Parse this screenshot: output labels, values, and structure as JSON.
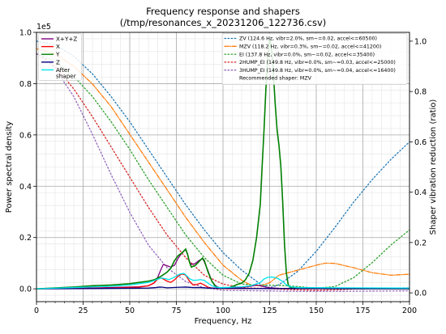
{
  "chart_data": {
    "type": "line",
    "title": "Frequency response and shapers",
    "subtitle": "(/tmp/resonances_x_20231206_122736.csv)",
    "xlabel": "Frequency, Hz",
    "ylabel": "Power spectral density",
    "y2label": "Shaper vibration reduction (ratio)",
    "xlim": [
      0,
      200
    ],
    "ylim": [
      -5000,
      100000
    ],
    "y2lim": [
      -0.035,
      1.035
    ],
    "y_offset_label": "1e5",
    "xticks": [
      0,
      25,
      50,
      75,
      100,
      125,
      150,
      175,
      200
    ],
    "yticks": [
      0.0,
      0.2,
      0.4,
      0.6,
      0.8,
      1.0
    ],
    "y2ticks": [
      0.0,
      0.2,
      0.4,
      0.6,
      0.8,
      1.0
    ],
    "grid": true,
    "legend_left_placement": "top-left",
    "legend_right_placement": "top-right",
    "psd_series": [
      {
        "name": "X+Y+Z",
        "color": "#800080",
        "points": [
          [
            0,
            0
          ],
          [
            20,
            200
          ],
          [
            40,
            500
          ],
          [
            55,
            800
          ],
          [
            60,
            1200
          ],
          [
            63,
            2200
          ],
          [
            65,
            4500
          ],
          [
            67,
            8000
          ],
          [
            68,
            9500
          ],
          [
            70,
            9000
          ],
          [
            72,
            8500
          ],
          [
            74,
            9200
          ],
          [
            76,
            12000
          ],
          [
            78,
            14000
          ],
          [
            80,
            15300
          ],
          [
            81,
            13500
          ],
          [
            82,
            10500
          ],
          [
            83,
            9500
          ],
          [
            85,
            9800
          ],
          [
            87,
            11000
          ],
          [
            89,
            11800
          ],
          [
            90,
            10500
          ],
          [
            92,
            7000
          ],
          [
            94,
            3000
          ],
          [
            96,
            1200
          ],
          [
            98,
            400
          ],
          [
            100,
            200
          ],
          [
            105,
            300
          ],
          [
            110,
            600
          ],
          [
            115,
            1000
          ],
          [
            118,
            1500
          ],
          [
            120,
            1200
          ],
          [
            122,
            800
          ],
          [
            125,
            400
          ],
          [
            130,
            200
          ],
          [
            140,
            100
          ],
          [
            160,
            80
          ],
          [
            200,
            50
          ]
        ]
      },
      {
        "name": "X",
        "color": "#ff0000",
        "points": [
          [
            0,
            0
          ],
          [
            20,
            100
          ],
          [
            40,
            300
          ],
          [
            55,
            700
          ],
          [
            60,
            1200
          ],
          [
            63,
            2300
          ],
          [
            65,
            3800
          ],
          [
            67,
            4200
          ],
          [
            68,
            3800
          ],
          [
            70,
            3000
          ],
          [
            72,
            2500
          ],
          [
            74,
            3500
          ],
          [
            76,
            5000
          ],
          [
            78,
            5800
          ],
          [
            80,
            5400
          ],
          [
            82,
            3000
          ],
          [
            84,
            1500
          ],
          [
            86,
            1700
          ],
          [
            88,
            2200
          ],
          [
            90,
            1500
          ],
          [
            92,
            600
          ],
          [
            95,
            200
          ],
          [
            100,
            100
          ],
          [
            120,
            80
          ],
          [
            200,
            50
          ]
        ]
      },
      {
        "name": "Y",
        "color": "#008000",
        "points": [
          [
            0,
            0
          ],
          [
            20,
            700
          ],
          [
            30,
            1200
          ],
          [
            40,
            1500
          ],
          [
            50,
            2000
          ],
          [
            55,
            2500
          ],
          [
            60,
            3000
          ],
          [
            63,
            3500
          ],
          [
            65,
            4200
          ],
          [
            67,
            5000
          ],
          [
            70,
            6500
          ],
          [
            72,
            8000
          ],
          [
            74,
            11000
          ],
          [
            76,
            13000
          ],
          [
            78,
            14000
          ],
          [
            80,
            15500
          ],
          [
            81,
            13500
          ],
          [
            82,
            10500
          ],
          [
            83,
            8500
          ],
          [
            85,
            9000
          ],
          [
            87,
            10500
          ],
          [
            89,
            12000
          ],
          [
            90,
            11000
          ],
          [
            92,
            6500
          ],
          [
            94,
            3000
          ],
          [
            96,
            900
          ],
          [
            98,
            300
          ],
          [
            100,
            200
          ],
          [
            103,
            400
          ],
          [
            106,
            1200
          ],
          [
            108,
            1800
          ],
          [
            110,
            2200
          ],
          [
            112,
            3500
          ],
          [
            114,
            6000
          ],
          [
            116,
            11000
          ],
          [
            118,
            20000
          ],
          [
            120,
            33000
          ],
          [
            121,
            48000
          ],
          [
            122,
            62000
          ],
          [
            123,
            78000
          ],
          [
            124,
            90000
          ],
          [
            125,
            98000
          ],
          [
            126,
            94000
          ],
          [
            127,
            84000
          ],
          [
            128,
            72000
          ],
          [
            129,
            62000
          ],
          [
            130,
            56000
          ],
          [
            131,
            48000
          ],
          [
            132,
            34000
          ],
          [
            133,
            17000
          ],
          [
            134,
            6000
          ],
          [
            135,
            1500
          ],
          [
            136,
            500
          ],
          [
            140,
            200
          ],
          [
            160,
            100
          ],
          [
            200,
            60
          ]
        ]
      },
      {
        "name": "Z",
        "color": "#000080",
        "points": [
          [
            0,
            0
          ],
          [
            30,
            100
          ],
          [
            60,
            300
          ],
          [
            64,
            500
          ],
          [
            66,
            700
          ],
          [
            68,
            600
          ],
          [
            70,
            400
          ],
          [
            76,
            600
          ],
          [
            80,
            700
          ],
          [
            84,
            500
          ],
          [
            88,
            500
          ],
          [
            92,
            300
          ],
          [
            100,
            200
          ],
          [
            120,
            100
          ],
          [
            200,
            50
          ]
        ]
      },
      {
        "name": "After\nshaper",
        "color": "#00e5ee",
        "points": [
          [
            0,
            0
          ],
          [
            20,
            500
          ],
          [
            40,
            1000
          ],
          [
            50,
            1500
          ],
          [
            55,
            2000
          ],
          [
            60,
            2500
          ],
          [
            63,
            3200
          ],
          [
            65,
            3800
          ],
          [
            67,
            4200
          ],
          [
            69,
            4000
          ],
          [
            71,
            3600
          ],
          [
            73,
            4200
          ],
          [
            75,
            5000
          ],
          [
            77,
            5800
          ],
          [
            79,
            6000
          ],
          [
            80,
            5500
          ],
          [
            82,
            4000
          ],
          [
            84,
            3300
          ],
          [
            86,
            3400
          ],
          [
            88,
            3600
          ],
          [
            90,
            3300
          ],
          [
            92,
            2200
          ],
          [
            94,
            1200
          ],
          [
            96,
            700
          ],
          [
            98,
            500
          ],
          [
            100,
            500
          ],
          [
            110,
            800
          ],
          [
            115,
            1200
          ],
          [
            120,
            2500
          ],
          [
            122,
            3800
          ],
          [
            124,
            4500
          ],
          [
            126,
            4600
          ],
          [
            128,
            4400
          ],
          [
            130,
            3800
          ],
          [
            132,
            2800
          ],
          [
            134,
            1500
          ],
          [
            136,
            800
          ],
          [
            140,
            500
          ],
          [
            160,
            400
          ],
          [
            200,
            300
          ]
        ]
      }
    ],
    "shaper_series": [
      {
        "name": "ZV (124.6 Hz, vibr=2.0%, sm~=0.02, accel<=60500)",
        "color": "#1f77b4",
        "dash": "1.5,2.6",
        "points": [
          [
            0,
            1.0
          ],
          [
            10,
            0.986
          ],
          [
            20,
            0.94
          ],
          [
            30,
            0.87
          ],
          [
            40,
            0.78
          ],
          [
            50,
            0.68
          ],
          [
            60,
            0.57
          ],
          [
            70,
            0.46
          ],
          [
            80,
            0.35
          ],
          [
            90,
            0.25
          ],
          [
            100,
            0.16
          ],
          [
            110,
            0.09
          ],
          [
            120,
            0.035
          ],
          [
            125,
            0.02
          ],
          [
            130,
            0.032
          ],
          [
            140,
            0.085
          ],
          [
            150,
            0.165
          ],
          [
            160,
            0.26
          ],
          [
            170,
            0.36
          ],
          [
            180,
            0.45
          ],
          [
            190,
            0.53
          ],
          [
            200,
            0.6
          ]
        ]
      },
      {
        "name": "MZV (118.2 Hz, vibr=0.3%, sm~=0.02, accel<=41200)",
        "color": "#ff7f0e",
        "dash": "5,1.6,1,1.6",
        "points": [
          [
            0,
            0.97
          ],
          [
            10,
            0.95
          ],
          [
            20,
            0.9
          ],
          [
            30,
            0.83
          ],
          [
            40,
            0.74
          ],
          [
            50,
            0.63
          ],
          [
            60,
            0.52
          ],
          [
            70,
            0.41
          ],
          [
            80,
            0.3
          ],
          [
            90,
            0.2
          ],
          [
            100,
            0.11
          ],
          [
            110,
            0.05
          ],
          [
            115,
            0.03
          ],
          [
            120,
            0.028
          ],
          [
            125,
            0.04
          ],
          [
            130,
            0.07
          ],
          [
            140,
            0.09
          ],
          [
            150,
            0.11
          ],
          [
            155,
            0.118
          ],
          [
            160,
            0.117
          ],
          [
            170,
            0.1
          ],
          [
            180,
            0.08
          ],
          [
            190,
            0.07
          ],
          [
            200,
            0.074
          ]
        ]
      },
      {
        "name": "EI (137.8 Hz, vibr=0.0%, sm~=0.02, accel<=35400)",
        "color": "#2ca02c",
        "dash": "1.5,2.6",
        "points": [
          [
            0,
            0.95
          ],
          [
            10,
            0.92
          ],
          [
            20,
            0.86
          ],
          [
            30,
            0.78
          ],
          [
            40,
            0.68
          ],
          [
            50,
            0.57
          ],
          [
            60,
            0.45
          ],
          [
            70,
            0.34
          ],
          [
            80,
            0.23
          ],
          [
            90,
            0.14
          ],
          [
            100,
            0.07
          ],
          [
            110,
            0.035
          ],
          [
            120,
            0.03
          ],
          [
            130,
            0.03
          ],
          [
            140,
            0.025
          ],
          [
            150,
            0.018
          ],
          [
            160,
            0.025
          ],
          [
            170,
            0.06
          ],
          [
            180,
            0.12
          ],
          [
            190,
            0.19
          ],
          [
            200,
            0.25
          ]
        ]
      },
      {
        "name": "2HUMP_EI (149.8 Hz, vibr=0.0%, sm~=0.03, accel<=25000)",
        "color": "#d62728",
        "dash": "1.5,2.6",
        "points": [
          [
            0,
            0.95
          ],
          [
            10,
            0.9
          ],
          [
            20,
            0.81
          ],
          [
            30,
            0.7
          ],
          [
            40,
            0.58
          ],
          [
            50,
            0.46
          ],
          [
            60,
            0.34
          ],
          [
            70,
            0.23
          ],
          [
            80,
            0.14
          ],
          [
            90,
            0.07
          ],
          [
            100,
            0.035
          ],
          [
            110,
            0.02
          ],
          [
            120,
            0.018
          ],
          [
            130,
            0.015
          ],
          [
            140,
            0.012
          ],
          [
            150,
            0.01
          ],
          [
            160,
            0.012
          ],
          [
            170,
            0.015
          ],
          [
            180,
            0.017
          ],
          [
            190,
            0.018
          ],
          [
            200,
            0.02
          ]
        ]
      },
      {
        "name": "3HUMP_EI (149.8 Hz, vibr=0.0%, sm~=0.04, accel<=16400)",
        "color": "#9467bd",
        "dash": "1.5,2.6",
        "points": [
          [
            0,
            0.95
          ],
          [
            5,
            0.93
          ],
          [
            10,
            0.89
          ],
          [
            20,
            0.78
          ],
          [
            30,
            0.63
          ],
          [
            40,
            0.47
          ],
          [
            50,
            0.32
          ],
          [
            60,
            0.19
          ],
          [
            70,
            0.1
          ],
          [
            80,
            0.045
          ],
          [
            90,
            0.02
          ],
          [
            100,
            0.01
          ],
          [
            120,
            0.008
          ],
          [
            140,
            0.006
          ],
          [
            160,
            0.006
          ],
          [
            180,
            0.007
          ],
          [
            200,
            0.008
          ]
        ]
      }
    ],
    "recommended": "Recommended shaper: MZV"
  }
}
